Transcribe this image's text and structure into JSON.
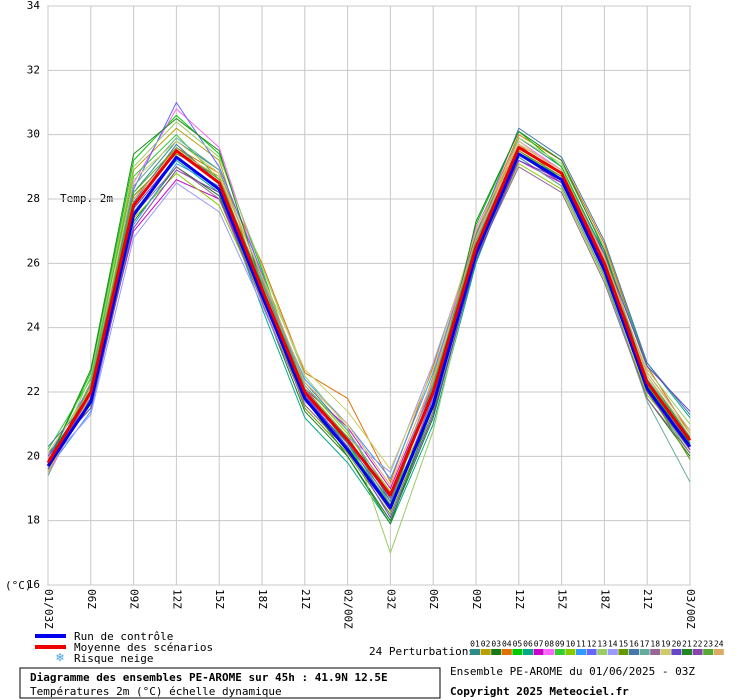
{
  "chart_data": {
    "type": "line",
    "title": "Diagramme des ensembles PE-AROME sur 45h : 41.9N 12.5E",
    "subtitle": "Températures 2m (°C) échelle dynamique",
    "run_info": "Ensemble PE-AROME du 01/06/2025 - 03Z",
    "copyright": "Copyright 2025 Meteociel.fr",
    "annotation": "Temp. 2m",
    "ylabel": "(°C)",
    "legend_title": "24 Perturbations",
    "snow_label": "Risque neige",
    "categories": [
      "01/03Z",
      "06Z",
      "09Z",
      "12Z",
      "15Z",
      "18Z",
      "21Z",
      "02/00Z",
      "03Z",
      "06Z",
      "09Z",
      "12Z",
      "15Z",
      "18Z",
      "21Z",
      "03/00Z"
    ],
    "ylim": [
      16,
      34
    ],
    "yticks": [
      16,
      18,
      20,
      22,
      24,
      26,
      28,
      30,
      32,
      34
    ],
    "grid": true,
    "series": [
      {
        "name": "01",
        "color": "#2e8b8b",
        "line_width": 1,
        "values": [
          19.9,
          21.8,
          28.2,
          29.8,
          28.9,
          25.5,
          22.3,
          20.8,
          18.6,
          21.6,
          26.8,
          29.9,
          29.0,
          26.3,
          22.5,
          20.6
        ]
      },
      {
        "name": "02",
        "color": "#b8a000",
        "line_width": 1,
        "values": [
          19.6,
          22.3,
          28.9,
          30.2,
          29.2,
          25.0,
          21.6,
          20.2,
          18.4,
          22.5,
          27.0,
          29.7,
          28.6,
          25.8,
          22.0,
          20.3
        ]
      },
      {
        "name": "03",
        "color": "#1a7a1a",
        "line_width": 1,
        "values": [
          20.1,
          21.5,
          27.3,
          29.0,
          28.1,
          24.8,
          21.4,
          20.0,
          18.0,
          21.2,
          26.1,
          29.3,
          28.4,
          25.6,
          21.8,
          20.0
        ]
      },
      {
        "name": "04",
        "color": "#e07000",
        "line_width": 1,
        "values": [
          19.5,
          22.1,
          28.0,
          29.6,
          28.8,
          26.0,
          22.6,
          21.8,
          19.2,
          22.8,
          26.9,
          30.0,
          29.2,
          26.6,
          22.8,
          20.7
        ]
      },
      {
        "name": "05",
        "color": "#00cc00",
        "line_width": 1,
        "values": [
          19.8,
          22.6,
          29.2,
          30.6,
          29.4,
          25.8,
          22.0,
          20.4,
          18.3,
          21.9,
          27.2,
          30.1,
          29.0,
          26.2,
          22.2,
          20.4
        ]
      },
      {
        "name": "06",
        "color": "#00aa88",
        "line_width": 1,
        "values": [
          20.0,
          21.9,
          27.6,
          29.2,
          28.2,
          24.6,
          21.2,
          19.8,
          17.9,
          21.0,
          26.0,
          29.4,
          28.7,
          26.4,
          22.9,
          21.2
        ]
      },
      {
        "name": "07",
        "color": "#cc00cc",
        "line_width": 1,
        "values": [
          19.7,
          21.7,
          27.0,
          28.6,
          28.0,
          25.1,
          22.1,
          20.9,
          19.0,
          22.2,
          26.4,
          29.2,
          28.5,
          25.9,
          22.1,
          20.2
        ]
      },
      {
        "name": "08",
        "color": "#ff66ff",
        "line_width": 1,
        "values": [
          19.4,
          22.0,
          28.5,
          30.8,
          29.6,
          25.6,
          21.8,
          20.6,
          18.7,
          22.4,
          27.1,
          29.8,
          28.9,
          26.1,
          22.4,
          20.5
        ]
      },
      {
        "name": "09",
        "color": "#33cc33",
        "line_width": 1,
        "values": [
          20.2,
          22.4,
          28.7,
          30.0,
          28.6,
          25.3,
          21.9,
          20.3,
          18.5,
          21.7,
          26.6,
          29.5,
          28.6,
          25.7,
          22.0,
          20.1
        ]
      },
      {
        "name": "10",
        "color": "#88cc00",
        "line_width": 1,
        "values": [
          19.9,
          21.6,
          27.4,
          28.8,
          27.8,
          24.9,
          22.2,
          20.7,
          18.9,
          21.5,
          26.2,
          29.1,
          28.3,
          25.5,
          21.9,
          20.4
        ]
      },
      {
        "name": "11",
        "color": "#3399ff",
        "line_width": 1,
        "values": [
          19.6,
          21.4,
          27.2,
          29.1,
          28.4,
          25.4,
          22.4,
          21.0,
          19.3,
          22.6,
          26.7,
          29.6,
          28.8,
          26.0,
          22.6,
          20.8
        ]
      },
      {
        "name": "12",
        "color": "#6666ff",
        "line_width": 1,
        "values": [
          20.0,
          22.2,
          28.3,
          31.0,
          29.0,
          25.7,
          22.0,
          20.5,
          18.4,
          21.8,
          26.5,
          29.4,
          28.5,
          25.8,
          22.3,
          20.6
        ]
      },
      {
        "name": "13",
        "color": "#99cc66",
        "line_width": 1,
        "values": [
          19.5,
          22.5,
          29.0,
          30.4,
          29.3,
          25.9,
          22.5,
          20.9,
          17.0,
          20.8,
          26.3,
          29.9,
          29.1,
          26.5,
          22.7,
          21.0
        ]
      },
      {
        "name": "14",
        "color": "#9999ff",
        "line_width": 1,
        "values": [
          19.8,
          21.3,
          26.8,
          28.5,
          27.6,
          24.7,
          21.7,
          20.6,
          19.5,
          22.9,
          26.8,
          29.7,
          28.9,
          26.2,
          22.4,
          20.3
        ]
      },
      {
        "name": "15",
        "color": "#669900",
        "line_width": 1,
        "values": [
          19.7,
          22.0,
          28.1,
          29.4,
          28.7,
          25.2,
          21.5,
          20.1,
          18.2,
          21.4,
          26.4,
          29.5,
          28.7,
          25.9,
          22.1,
          19.9
        ]
      },
      {
        "name": "16",
        "color": "#4477aa",
        "line_width": 1,
        "values": [
          20.3,
          21.8,
          27.9,
          29.7,
          28.5,
          25.0,
          21.8,
          20.4,
          18.6,
          22.1,
          26.9,
          30.2,
          29.3,
          26.7,
          22.9,
          21.3
        ]
      },
      {
        "name": "17",
        "color": "#66aa99",
        "line_width": 1,
        "values": [
          19.4,
          22.3,
          28.4,
          29.9,
          28.9,
          25.5,
          22.2,
          20.8,
          18.8,
          22.3,
          26.6,
          29.3,
          28.4,
          25.6,
          21.7,
          19.2
        ]
      },
      {
        "name": "18",
        "color": "#996699",
        "line_width": 1,
        "values": [
          19.9,
          21.7,
          27.5,
          29.0,
          28.0,
          24.8,
          21.6,
          20.2,
          18.3,
          21.9,
          26.2,
          29.0,
          28.2,
          25.4,
          21.8,
          20.1
        ]
      },
      {
        "name": "19",
        "color": "#cccc66",
        "line_width": 1,
        "values": [
          20.1,
          22.1,
          28.6,
          29.8,
          28.8,
          25.6,
          22.7,
          21.4,
          19.6,
          22.7,
          27.0,
          29.8,
          28.8,
          26.1,
          22.5,
          20.7
        ]
      },
      {
        "name": "20",
        "color": "#6644cc",
        "line_width": 1,
        "values": [
          19.6,
          21.9,
          27.7,
          29.3,
          28.3,
          25.1,
          21.9,
          20.3,
          18.1,
          21.3,
          26.1,
          29.2,
          28.6,
          26.3,
          22.8,
          21.4
        ]
      },
      {
        "name": "21",
        "color": "#228822",
        "line_width": 1,
        "values": [
          19.8,
          22.7,
          29.4,
          30.5,
          29.5,
          25.3,
          21.8,
          20.0,
          17.9,
          21.6,
          27.3,
          30.1,
          29.2,
          26.4,
          22.3,
          20.4
        ]
      },
      {
        "name": "22",
        "color": "#8844aa",
        "line_width": 1,
        "values": [
          20.0,
          21.5,
          27.1,
          28.9,
          28.2,
          24.9,
          21.9,
          20.5,
          18.7,
          22.0,
          26.5,
          29.4,
          28.5,
          25.7,
          22.0,
          20.2
        ]
      },
      {
        "name": "23",
        "color": "#55aa33",
        "line_width": 1,
        "values": [
          19.7,
          22.2,
          28.2,
          29.6,
          28.6,
          25.4,
          22.1,
          20.6,
          18.5,
          22.2,
          26.7,
          29.6,
          28.8,
          26.0,
          22.4,
          20.6
        ]
      },
      {
        "name": "24",
        "color": "#ddaa66",
        "line_width": 1,
        "values": [
          19.5,
          21.9,
          28.0,
          29.5,
          28.7,
          25.6,
          22.3,
          21.0,
          19.1,
          22.4,
          26.8,
          29.7,
          28.9,
          26.2,
          22.6,
          20.8
        ]
      },
      {
        "name": "Run de contrôle",
        "color": "#0000ee",
        "line_width": 3,
        "values": [
          19.7,
          21.7,
          27.5,
          29.3,
          28.3,
          25.0,
          21.8,
          20.2,
          18.4,
          21.6,
          26.3,
          29.4,
          28.6,
          25.8,
          22.1,
          20.3
        ]
      },
      {
        "name": "Moyenne des scénarios",
        "color": "#ee0000",
        "line_width": 3,
        "values": [
          19.8,
          22.0,
          27.8,
          29.5,
          28.5,
          25.2,
          22.0,
          20.5,
          18.8,
          22.0,
          26.5,
          29.6,
          28.8,
          26.0,
          22.3,
          20.5
        ]
      }
    ]
  }
}
